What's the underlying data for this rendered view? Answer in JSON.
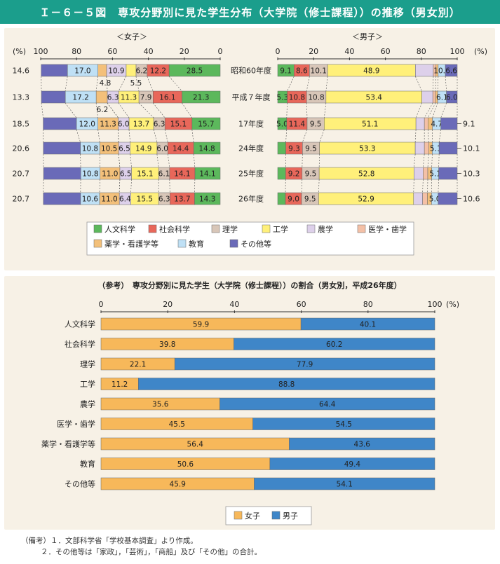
{
  "title": "Ｉ－６－５図　専攻分野別に見た学生分布（大学院（修士課程））の推移（男女別）",
  "top_chart": {
    "female_label": "＜女子＞",
    "male_label": "＜男子＞",
    "percent_left": "(%)",
    "percent_right": "(%)",
    "female_ticks": [
      "100",
      "80",
      "60",
      "40",
      "20",
      "0"
    ],
    "male_ticks": [
      "0",
      "20",
      "40",
      "60",
      "80",
      "100"
    ],
    "rows": [
      "昭和60年度",
      "平成７年度",
      "17年度",
      "24年度",
      "25年度",
      "26年度"
    ],
    "female_left_labels": [
      "14.6",
      "13.3",
      "18.5",
      "20.6",
      "20.7",
      "20.7"
    ],
    "male_right_labels": [
      "",
      "",
      "9.1",
      "10.1",
      "10.3",
      "10.6"
    ],
    "extra_labels": [
      "4.8",
      "5.5",
      "6.2"
    ]
  },
  "legend_top": [
    "人文科学",
    "社会科学",
    "理学",
    "工学",
    "農学",
    "医学・歯学",
    "薬学・看護学等",
    "教育",
    "その他等"
  ],
  "bottom_chart": {
    "title": "（参考）　専攻分野別に見た学生（大学院（修士課程））の割合（男女別，平成26年度）",
    "ticks": [
      "0",
      "20",
      "40",
      "60",
      "80",
      "100"
    ],
    "percent": "(%)",
    "legend": [
      "女子",
      "男子"
    ]
  },
  "notes": [
    "（備考）１．文部科学省「学校基本調査」より作成。",
    "２．その他等は「家政」，「芸術」，「商船」及び「その他」の合計。"
  ],
  "chart_data": [
    {
      "type": "bar",
      "title": "＜女子＞",
      "orientation": "horizontal-stacked",
      "categories": [
        "昭和60年度",
        "平成７年度",
        "17年度",
        "24年度",
        "25年度",
        "26年度"
      ],
      "xlim": [
        0,
        100
      ],
      "series": [
        {
          "name": "人文科学",
          "color": "#5cb85c",
          "values": [
            28.5,
            21.3,
            15.7,
            14.8,
            14.1,
            14.3
          ]
        },
        {
          "name": "社会科学",
          "color": "#e8675a",
          "values": [
            12.2,
            16.1,
            15.1,
            14.4,
            14.1,
            13.7
          ]
        },
        {
          "name": "理学",
          "color": "#d8c6b8",
          "values": [
            6.2,
            7.9,
            6.3,
            6.0,
            6.1,
            6.3
          ]
        },
        {
          "name": "工学",
          "color": "#fff07a",
          "values": [
            5.5,
            11.3,
            13.7,
            14.9,
            15.1,
            15.5
          ]
        },
        {
          "name": "農学",
          "color": "#ddd0ea",
          "values": [
            10.9,
            6.3,
            6.0,
            6.5,
            6.5,
            6.4
          ]
        },
        {
          "name": "医学・歯学",
          "color": "#f4c0a6",
          "values": [
            0,
            0,
            0,
            0,
            0,
            0
          ]
        },
        {
          "name": "薬学・看護学等",
          "color": "#f3c07a",
          "values": [
            4.8,
            6.2,
            11.3,
            10.5,
            11.0,
            11.0
          ]
        },
        {
          "name": "教育",
          "color": "#bfe0f5",
          "values": [
            17.0,
            17.2,
            12.0,
            10.8,
            10.8,
            10.6
          ]
        },
        {
          "name": "その他等",
          "color": "#6a6ab8",
          "values": [
            14.6,
            13.3,
            18.5,
            20.6,
            20.7,
            20.7
          ]
        }
      ]
    },
    {
      "type": "bar",
      "title": "＜男子＞",
      "orientation": "horizontal-stacked",
      "categories": [
        "昭和60年度",
        "平成７年度",
        "17年度",
        "24年度",
        "25年度",
        "26年度"
      ],
      "xlim": [
        0,
        100
      ],
      "series": [
        {
          "name": "人文科学",
          "color": "#5cb85c",
          "values": [
            9.1,
            5.3,
            5.0,
            4.5,
            4.4,
            4.3
          ]
        },
        {
          "name": "社会科学",
          "color": "#e8675a",
          "values": [
            8.6,
            10.8,
            11.4,
            9.3,
            9.2,
            9.0
          ]
        },
        {
          "name": "理学",
          "color": "#d8c6b8",
          "values": [
            10.1,
            10.8,
            9.5,
            9.5,
            9.5,
            9.5
          ]
        },
        {
          "name": "工学",
          "color": "#fff07a",
          "values": [
            48.9,
            53.4,
            51.1,
            53.3,
            52.8,
            52.9
          ]
        },
        {
          "name": "農学",
          "color": "#ddd0ea",
          "values": [
            10.0,
            6.1,
            4.7,
            5.1,
            5.1,
            5.0
          ]
        },
        {
          "name": "医学・歯学",
          "color": "#f4c0a6",
          "values": [
            1.5,
            1.5,
            2.0,
            2.4,
            2.6,
            2.7
          ]
        },
        {
          "name": "薬学・看護学等",
          "color": "#f3c07a",
          "values": [
            1.2,
            1.2,
            2.5,
            2.0,
            2.2,
            2.3
          ]
        },
        {
          "name": "教育",
          "color": "#bfe0f5",
          "values": [
            4.0,
            4.9,
            4.7,
            3.8,
            3.9,
            3.7
          ]
        },
        {
          "name": "その他等",
          "color": "#6a6ab8",
          "values": [
            6.6,
            6.0,
            9.1,
            10.1,
            10.3,
            10.6
          ]
        }
      ],
      "labels": [
        [
          "9.1",
          "8.6",
          "10.1",
          "48.9",
          "",
          "",
          "",
          "10.0",
          "6.6"
        ],
        [
          "5.3",
          "10.8",
          "10.8",
          "53.4",
          "",
          "",
          "",
          "6.1",
          "6.0"
        ],
        [
          "5.0",
          "11.4",
          "9.5",
          "51.1",
          "",
          "",
          "",
          "4.7",
          ""
        ],
        [
          "",
          "9.3",
          "9.5",
          "53.3",
          "",
          "",
          "",
          "5.1",
          ""
        ],
        [
          "",
          "9.2",
          "9.5",
          "52.8",
          "",
          "",
          "",
          "5.1",
          ""
        ],
        [
          "",
          "9.0",
          "9.5",
          "52.9",
          "",
          "",
          "",
          "5.0",
          ""
        ]
      ]
    },
    {
      "type": "bar",
      "title": "（参考）　専攻分野別に見た学生（大学院（修士課程））の割合（男女別，平成26年度）",
      "orientation": "horizontal-stacked",
      "categories": [
        "人文科学",
        "社会科学",
        "理学",
        "工学",
        "農学",
        "医学・歯学",
        "薬学・看護学等",
        "教育",
        "その他等"
      ],
      "xlim": [
        0,
        100
      ],
      "series": [
        {
          "name": "女子",
          "color": "#f7b85a",
          "values": [
            59.9,
            39.8,
            22.1,
            11.2,
            35.6,
            45.5,
            56.4,
            50.6,
            45.9
          ]
        },
        {
          "name": "男子",
          "color": "#3f86c8",
          "values": [
            40.1,
            60.2,
            77.9,
            88.8,
            64.4,
            54.5,
            43.6,
            49.4,
            54.1
          ]
        }
      ]
    }
  ]
}
